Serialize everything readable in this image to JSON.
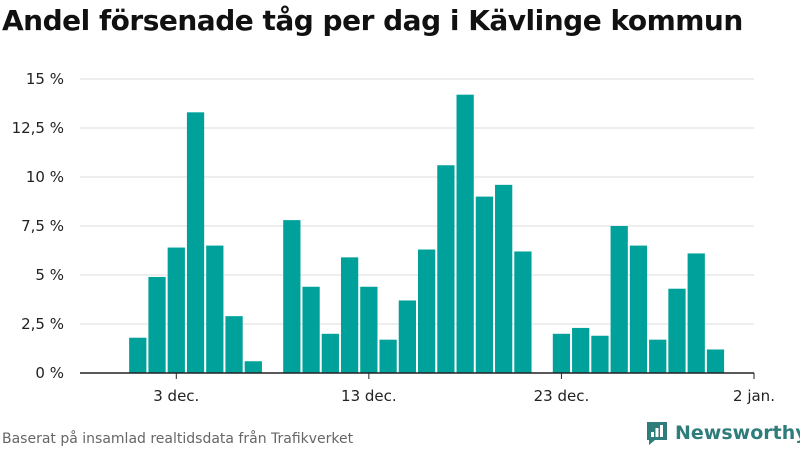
{
  "chart_data": {
    "type": "bar",
    "title": "Andel försenade tåg per dag i Kävlinge kommun",
    "xlabel": "",
    "ylabel": "",
    "bar_color": "#00a19a",
    "grid": true,
    "ylim": [
      0,
      15
    ],
    "y_ticks": [
      {
        "value": 0,
        "label": "0 %"
      },
      {
        "value": 2.5,
        "label": "2,5 %"
      },
      {
        "value": 5,
        "label": "5 %"
      },
      {
        "value": 7.5,
        "label": "7,5 %"
      },
      {
        "value": 10,
        "label": "10 %"
      },
      {
        "value": 12.5,
        "label": "12,5 %"
      },
      {
        "value": 15,
        "label": "15 %"
      }
    ],
    "x_range": [
      "2023-11-28",
      "2024-01-02"
    ],
    "x_ticks": [
      {
        "date": "2023-12-03",
        "label": "3 dec."
      },
      {
        "date": "2023-12-13",
        "label": "13 dec."
      },
      {
        "date": "2023-12-23",
        "label": "23 dec."
      },
      {
        "date": "2024-01-02",
        "label": "2 jan."
      }
    ],
    "values": [
      {
        "date": "2023-12-01",
        "value": 1.8
      },
      {
        "date": "2023-12-02",
        "value": 4.9
      },
      {
        "date": "2023-12-03",
        "value": 6.4
      },
      {
        "date": "2023-12-04",
        "value": 13.3
      },
      {
        "date": "2023-12-05",
        "value": 6.5
      },
      {
        "date": "2023-12-06",
        "value": 2.9
      },
      {
        "date": "2023-12-07",
        "value": 0.6
      },
      {
        "date": "2023-12-09",
        "value": 7.8
      },
      {
        "date": "2023-12-10",
        "value": 4.4
      },
      {
        "date": "2023-12-11",
        "value": 2.0
      },
      {
        "date": "2023-12-12",
        "value": 5.9
      },
      {
        "date": "2023-12-13",
        "value": 4.4
      },
      {
        "date": "2023-12-14",
        "value": 1.7
      },
      {
        "date": "2023-12-15",
        "value": 3.7
      },
      {
        "date": "2023-12-16",
        "value": 6.3
      },
      {
        "date": "2023-12-17",
        "value": 10.6
      },
      {
        "date": "2023-12-18",
        "value": 14.2
      },
      {
        "date": "2023-12-19",
        "value": 9.0
      },
      {
        "date": "2023-12-20",
        "value": 9.6
      },
      {
        "date": "2023-12-21",
        "value": 6.2
      },
      {
        "date": "2023-12-23",
        "value": 2.0
      },
      {
        "date": "2023-12-24",
        "value": 2.3
      },
      {
        "date": "2023-12-25",
        "value": 1.9
      },
      {
        "date": "2023-12-26",
        "value": 7.5
      },
      {
        "date": "2023-12-27",
        "value": 6.5
      },
      {
        "date": "2023-12-28",
        "value": 1.7
      },
      {
        "date": "2023-12-29",
        "value": 4.3
      },
      {
        "date": "2023-12-30",
        "value": 6.1
      },
      {
        "date": "2023-12-31",
        "value": 1.2
      }
    ]
  },
  "footer": {
    "source": "Baserat på insamlad realtidsdata från Trafikverket",
    "brand": "Newsworthy",
    "brand_color": "#2f7d7a",
    "brand_icon": "newsworthy-logo-icon"
  }
}
